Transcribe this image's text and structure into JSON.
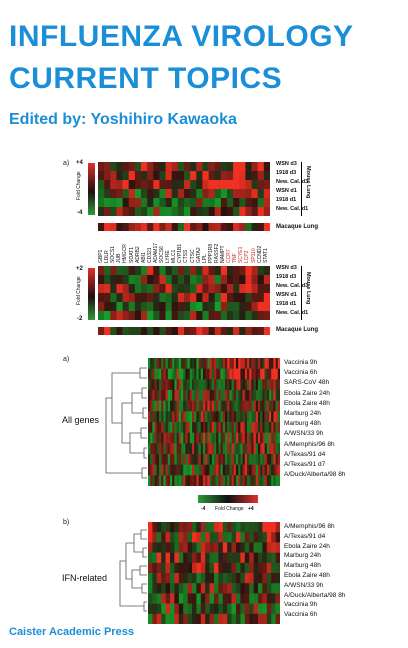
{
  "cover": {
    "title_line1": "INFLUENZA VIROLOGY",
    "title_line2": "CURRENT TOPICS",
    "editor": "Edited by: Yoshihiro Kawaoka",
    "publisher": "Caister Academic Press"
  },
  "figure_top": {
    "panel_label": "a)",
    "scale1_top": "+4",
    "scale1_bottom": "-4",
    "scale2_top": "+2",
    "scale2_bottom": "-2",
    "fold_change": "Fold Change",
    "rows": [
      "WSN d3",
      "1918 d3",
      "New. Cal. d3",
      "WSN d1",
      "1918 d1",
      "New. Cal. d1"
    ],
    "group_label": "Mouse Lung",
    "macaque": "Macaque Lung",
    "genes": [
      "GBP1",
      "LDLR",
      "SOCS1",
      "JUB",
      "HMGCR",
      "SOAT1",
      "ADRB2",
      "ABI1",
      "CD321",
      "ADAM17",
      "SOCS6",
      "LYRE",
      "MLC1",
      "CYP1B1",
      "CTSS",
      "CTSC",
      "GATA2",
      "LPL",
      "PPP1R8",
      "RASSF2",
      "NAMPT",
      "CCR7",
      "TNF",
      "SCYE1",
      "LCP2",
      "SP110",
      "CCND2",
      "STAT1"
    ]
  },
  "figure_mid": {
    "panel_label": "a)",
    "side_label": "All genes",
    "rows": [
      "Vaccinia 9h",
      "Vaccinia 6h",
      "SARS-CoV 48h",
      "Ebola Zaire 24h",
      "Ebola Zaire 48h",
      "Marburg 24h",
      "Marburg 48h",
      "A/WSN/33 9h",
      "A/Memphis/96 8h",
      "A/Texas/91 d4",
      "A/Texas/91 d7",
      "A/Duck/Alberta/98 8h"
    ],
    "scale_min": "-4",
    "scale_label": "Fold Change",
    "scale_max": "+4"
  },
  "figure_bottom": {
    "panel_label": "b)",
    "side_label": "IFN-related",
    "rows": [
      "A/Memphis/96 8h",
      "A/Texas/91 d4",
      "Ebola Zaire 24h",
      "Marburg 24h",
      "Marburg 48h",
      "Ebola Zaire 48h",
      "A/WSN/33 9h",
      "A/Duck/Alberta/98 8h",
      "Vaccinia 9h",
      "Vaccinia 6h"
    ]
  },
  "colors": {
    "title_blue": "#1a8fd8",
    "heat_red": "#e0302a",
    "heat_green": "#2f9a3a"
  }
}
